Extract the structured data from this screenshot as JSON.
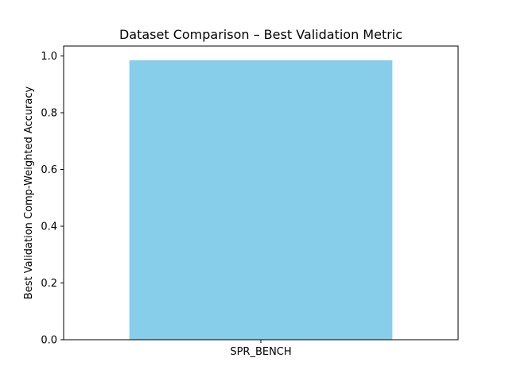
{
  "chart_data": {
    "type": "bar",
    "title": "Dataset Comparison – Best Validation Metric",
    "xlabel": "",
    "ylabel": "Best Validation Comp-Weighted Accuracy",
    "categories": [
      "SPR_BENCH"
    ],
    "values": [
      0.985
    ],
    "ylim": [
      0,
      1.035
    ],
    "yticks": [
      0.0,
      0.2,
      0.4,
      0.6,
      0.8,
      1.0
    ],
    "ytick_labels": [
      "0.0",
      "0.2",
      "0.4",
      "0.6",
      "0.8",
      "1.0"
    ],
    "grid": false,
    "legend": "none",
    "bar_color": "#87ceeb"
  }
}
